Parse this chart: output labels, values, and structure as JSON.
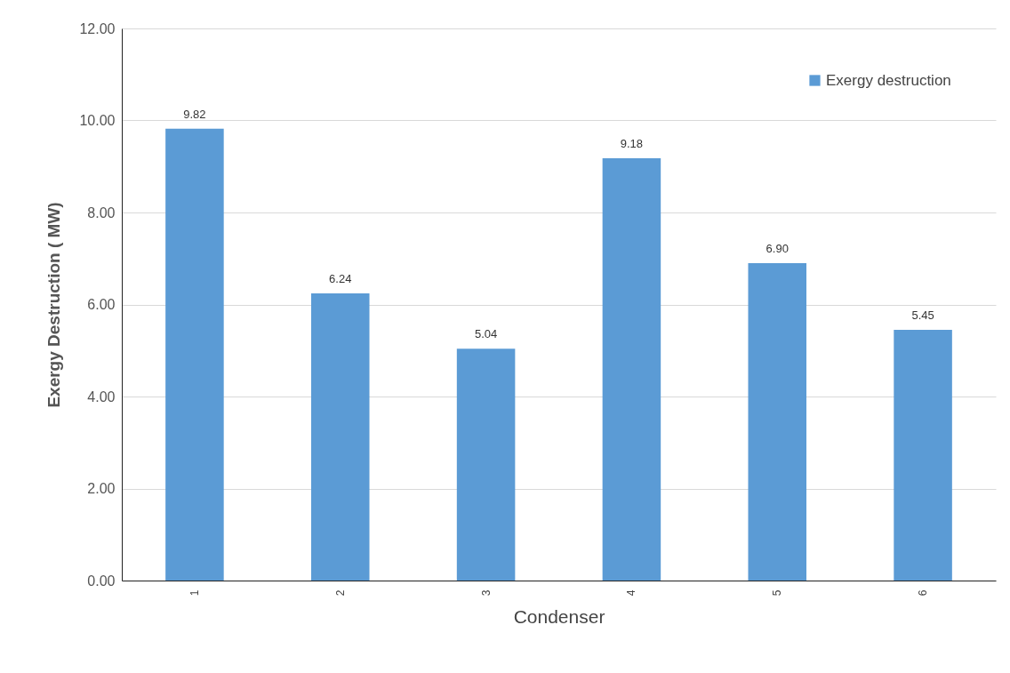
{
  "chart_data": {
    "type": "bar",
    "xlabel": "Condenser",
    "ylabel": "Exergy Destruction ( MW)",
    "categories": [
      "1",
      "2",
      "3",
      "4",
      "5",
      "6"
    ],
    "series": [
      {
        "name": "Exergy destruction",
        "color": "#5b9bd5",
        "values": [
          9.82,
          6.24,
          5.04,
          9.18,
          6.9,
          5.45
        ]
      }
    ],
    "value_labels": [
      "9.82",
      "6.24",
      "5.04",
      "9.18",
      "6.90",
      "5.45"
    ],
    "ylim": [
      0,
      12
    ],
    "yticks": [
      {
        "value": 0,
        "label": "0.00"
      },
      {
        "value": 2,
        "label": "2.00"
      },
      {
        "value": 4,
        "label": "4.00"
      },
      {
        "value": 6,
        "label": "6.00"
      },
      {
        "value": 8,
        "label": "8.00"
      },
      {
        "value": 10,
        "label": "10.00"
      },
      {
        "value": 12,
        "label": "12.00"
      }
    ],
    "grid": "y",
    "legend": "top right"
  }
}
